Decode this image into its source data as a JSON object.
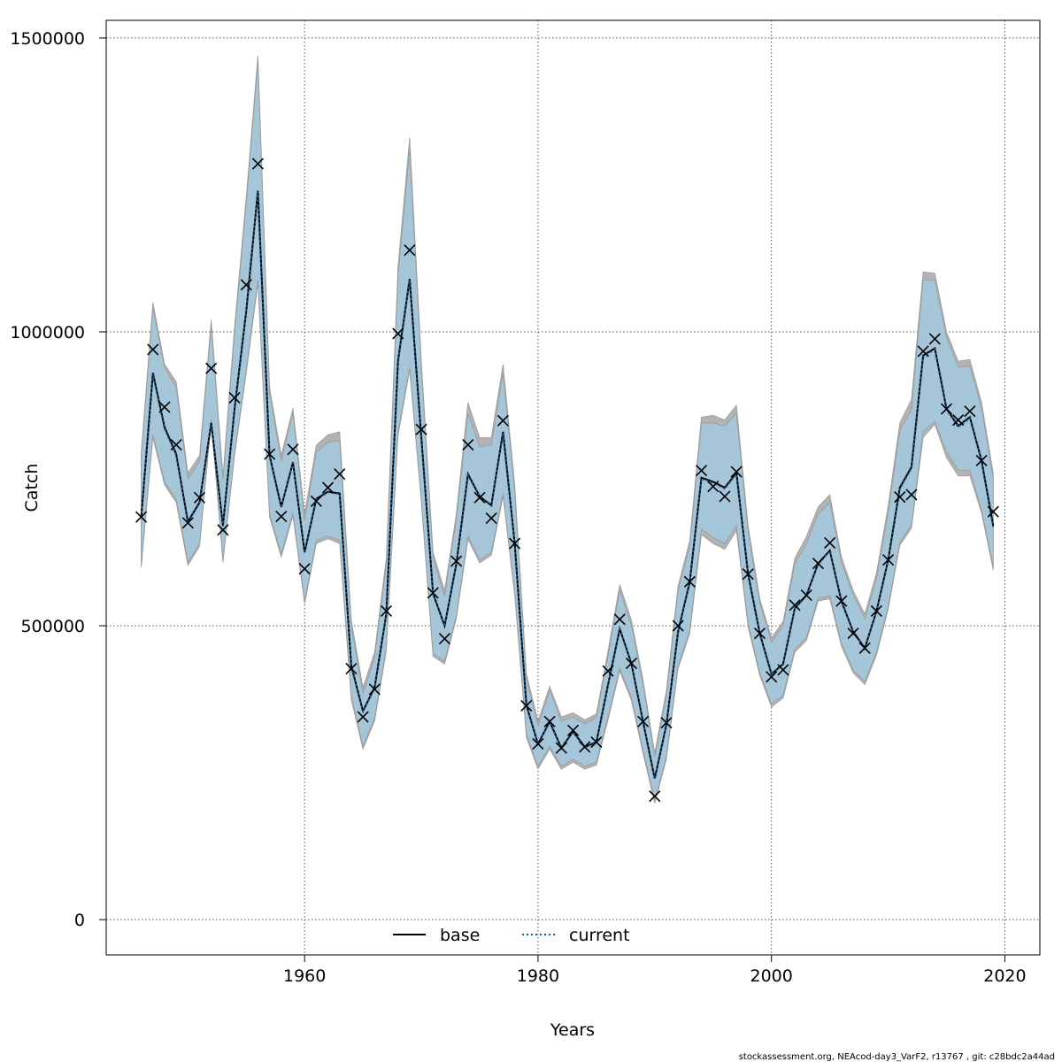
{
  "chart_data": {
    "type": "line",
    "title": "",
    "xlabel": "Years",
    "ylabel": "Catch",
    "xlim": [
      1943,
      2023
    ],
    "ylim": [
      -60000,
      1530000
    ],
    "x_ticks": [
      1960,
      1980,
      2000,
      2020
    ],
    "y_ticks": [
      0,
      500000,
      1000000,
      1500000
    ],
    "x_tick_labels": [
      "1960",
      "1980",
      "2000",
      "2020"
    ],
    "y_tick_labels": [
      "0",
      "500000",
      "1000000",
      "1500000"
    ],
    "grid": true,
    "legend_position": "bottom-center",
    "legend": [
      {
        "name": "base",
        "style": "solid",
        "color": "#000000"
      },
      {
        "name": "current",
        "style": "dotted",
        "color": "#1f5a8a"
      }
    ],
    "years": [
      1946,
      1947,
      1948,
      1949,
      1950,
      1951,
      1952,
      1953,
      1954,
      1955,
      1956,
      1957,
      1958,
      1959,
      1960,
      1961,
      1962,
      1963,
      1964,
      1965,
      1966,
      1967,
      1968,
      1969,
      1970,
      1971,
      1972,
      1973,
      1974,
      1975,
      1976,
      1977,
      1978,
      1979,
      1980,
      1981,
      1982,
      1983,
      1984,
      1985,
      1986,
      1987,
      1988,
      1989,
      1990,
      1991,
      1992,
      1993,
      1994,
      1995,
      1996,
      1997,
      1998,
      1999,
      2000,
      2001,
      2002,
      2003,
      2004,
      2005,
      2006,
      2007,
      2008,
      2009,
      2010,
      2011,
      2012,
      2013,
      2014,
      2015,
      2016,
      2017,
      2018,
      2019
    ],
    "series": [
      {
        "name": "observed catch",
        "marker": "x",
        "values": [
          685000,
          970000,
          872000,
          808000,
          675000,
          718000,
          938000,
          663000,
          888000,
          1080000,
          1286000,
          792000,
          686000,
          800000,
          597000,
          712000,
          735000,
          758000,
          427000,
          345000,
          392000,
          525000,
          997000,
          1139000,
          834000,
          556000,
          478000,
          610000,
          808000,
          718000,
          683000,
          849000,
          640000,
          364000,
          299000,
          337000,
          292000,
          322000,
          294000,
          302000,
          423000,
          511000,
          436000,
          337000,
          210000,
          335000,
          500000,
          575000,
          764000,
          737000,
          720000,
          762000,
          588000,
          487000,
          413000,
          425000,
          535000,
          552000,
          606000,
          641000,
          542000,
          487000,
          462000,
          525000,
          612000,
          719000,
          723000,
          967000,
          988000,
          869000,
          850000,
          865000,
          781000,
          694000
        ]
      },
      {
        "name": "base",
        "style": "solid",
        "values": [
          685000,
          930000,
          838000,
          792000,
          677000,
          710000,
          845000,
          670000,
          870000,
          1036000,
          1240000,
          790000,
          702000,
          778000,
          625000,
          716000,
          728000,
          725000,
          432000,
          355000,
          395000,
          520000,
          950000,
          1090000,
          820000,
          555000,
          500000,
          605000,
          758000,
          720000,
          705000,
          830000,
          640000,
          365000,
          299000,
          337000,
          292000,
          320000,
          294000,
          302000,
          400000,
          495000,
          436000,
          337000,
          240000,
          332000,
          490000,
          575000,
          752000,
          745000,
          735000,
          760000,
          588000,
          487000,
          418000,
          435000,
          530000,
          552000,
          606000,
          628000,
          542000,
          490000,
          462000,
          525000,
          612000,
          735000,
          770000,
          960000,
          972000,
          869000,
          840000,
          855000,
          781000,
          670000
        ]
      },
      {
        "name": "current",
        "style": "dotted",
        "values": [
          685000,
          928000,
          835000,
          790000,
          676000,
          708000,
          842000,
          669000,
          868000,
          1034000,
          1238000,
          789000,
          701000,
          777000,
          624000,
          715000,
          727000,
          724000,
          431000,
          354000,
          394000,
          519000,
          948000,
          1088000,
          819000,
          554000,
          499000,
          604000,
          756000,
          719000,
          704000,
          828000,
          639000,
          364000,
          298000,
          336000,
          291000,
          319000,
          293000,
          301000,
          399000,
          494000,
          435000,
          336000,
          239000,
          331000,
          489000,
          574000,
          750000,
          743000,
          733000,
          758000,
          587000,
          486000,
          417000,
          434000,
          529000,
          551000,
          605000,
          627000,
          541000,
          489000,
          461000,
          524000,
          611000,
          733000,
          768000,
          958000,
          970000,
          868000,
          838000,
          853000,
          780000,
          668000
        ]
      },
      {
        "name": "base band",
        "fill": "#b3b3b3",
        "lower": [
          600000,
          820000,
          740000,
          710000,
          603000,
          635000,
          848000,
          608000,
          790000,
          930000,
          1083000,
          685000,
          617000,
          687000,
          537000,
          640000,
          648000,
          640000,
          375000,
          290000,
          338000,
          457000,
          823000,
          935000,
          710000,
          448000,
          435000,
          512000,
          647000,
          607000,
          620000,
          720000,
          552000,
          310000,
          256000,
          290000,
          256000,
          268000,
          256000,
          263000,
          340000,
          423000,
          373000,
          283000,
          198000,
          273000,
          427000,
          487000,
          655000,
          640000,
          630000,
          662000,
          498000,
          415000,
          362000,
          377000,
          455000,
          475000,
          542000,
          546000,
          465000,
          420000,
          400000,
          450000,
          528000,
          637000,
          666000,
          820000,
          843000,
          786000,
          755000,
          755000,
          692000,
          595000
        ],
        "upper": [
          795000,
          1050000,
          945000,
          915000,
          760000,
          790000,
          1020000,
          755000,
          1010000,
          1230000,
          1470000,
          905000,
          790000,
          870000,
          690000,
          807000,
          825000,
          830000,
          510000,
          395000,
          455000,
          615000,
          1110000,
          1330000,
          950000,
          625000,
          560000,
          690000,
          880000,
          820000,
          820000,
          945000,
          740000,
          418000,
          338000,
          397000,
          345000,
          352000,
          340000,
          350000,
          458000,
          570000,
          510000,
          408000,
          283000,
          390000,
          568000,
          645000,
          855000,
          858000,
          850000,
          875000,
          670000,
          546000,
          480000,
          507000,
          615000,
          652000,
          702000,
          723000,
          617000,
          560000,
          520000,
          590000,
          704000,
          845000,
          885000,
          1102000,
          1100000,
          1000000,
          950000,
          953000,
          880000,
          760000
        ]
      },
      {
        "name": "current band",
        "fill": "#a5c5d8",
        "lower": [
          605000,
          825000,
          745000,
          715000,
          608000,
          640000,
          852000,
          612000,
          795000,
          935000,
          1088000,
          690000,
          622000,
          692000,
          542000,
          645000,
          653000,
          645000,
          380000,
          295000,
          343000,
          462000,
          828000,
          940000,
          715000,
          453000,
          440000,
          517000,
          652000,
          612000,
          625000,
          725000,
          557000,
          315000,
          261000,
          295000,
          261000,
          273000,
          261000,
          268000,
          345000,
          428000,
          378000,
          288000,
          203000,
          278000,
          432000,
          492000,
          665000,
          650000,
          640000,
          670000,
          503000,
          420000,
          367000,
          382000,
          460000,
          480000,
          547000,
          551000,
          470000,
          425000,
          405000,
          455000,
          533000,
          642000,
          671000,
          830000,
          848000,
          796000,
          765000,
          765000,
          697000,
          600000
        ],
        "upper": [
          790000,
          1040000,
          940000,
          905000,
          750000,
          780000,
          1012000,
          748000,
          1000000,
          1220000,
          1460000,
          895000,
          780000,
          862000,
          680000,
          795000,
          812000,
          815000,
          500000,
          385000,
          445000,
          605000,
          1095000,
          1310000,
          940000,
          615000,
          550000,
          680000,
          862000,
          805000,
          808000,
          930000,
          730000,
          410000,
          330000,
          390000,
          338000,
          345000,
          333000,
          343000,
          450000,
          560000,
          500000,
          400000,
          277000,
          382000,
          560000,
          635000,
          845000,
          845000,
          840000,
          862000,
          660000,
          538000,
          472000,
          500000,
          605000,
          640000,
          690000,
          710000,
          607000,
          552000,
          512000,
          580000,
          692000,
          832000,
          868000,
          1088000,
          1088000,
          990000,
          940000,
          942000,
          870000,
          750000
        ]
      }
    ]
  },
  "footnote": "stockassessment.org, NEAcod-day3_VarF2, r13767 , git: c28bdc2a44ad"
}
